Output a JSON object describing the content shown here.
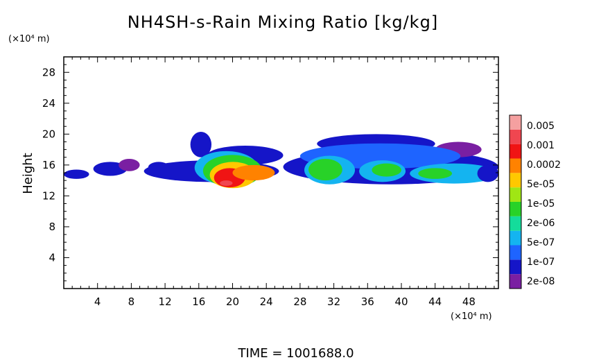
{
  "chart_data": {
    "type": "heatmap",
    "title": "NH4SH-s-Rain Mixing Ratio [kg/kg]",
    "ylabel": "Height",
    "y_unit": "(×10⁴ m)",
    "x_unit": "(×10⁴ m)",
    "xlim": [
      0,
      51.5
    ],
    "ylim": [
      0,
      30
    ],
    "x_ticks": [
      4,
      8,
      12,
      16,
      20,
      24,
      28,
      32,
      36,
      40,
      44,
      48
    ],
    "y_ticks": [
      4,
      8,
      12,
      16,
      20,
      24,
      28
    ],
    "footer": "TIME = 1001688.0",
    "colorbar": {
      "levels": [
        "2e-08",
        "1e-07",
        "5e-07",
        "2e-06",
        "1e-05",
        "5e-05",
        "0.0002",
        "0.001",
        "0.005"
      ],
      "colors": [
        "#7a1fa2",
        "#1515c8",
        "#1e64ff",
        "#14b4f0",
        "#14dc9b",
        "#28d228",
        "#a0e614",
        "#ffc800",
        "#ff8200",
        "#f01414",
        "#f04650",
        "#f5a0a0"
      ]
    },
    "regions": [
      {
        "level": 1,
        "x0": 0.0,
        "x1": 3.0,
        "y0": 14.2,
        "y1": 15.4
      },
      {
        "level": 1,
        "x0": 3.5,
        "x1": 7.5,
        "y0": 14.6,
        "y1": 16.4
      },
      {
        "level": 0,
        "x0": 6.5,
        "x1": 9.0,
        "y0": 15.2,
        "y1": 16.8
      },
      {
        "level": 1,
        "x0": 10.0,
        "x1": 12.5,
        "y0": 15.0,
        "y1": 16.4
      },
      {
        "level": 1,
        "x0": 9.5,
        "x1": 25.5,
        "y0": 13.8,
        "y1": 16.6
      },
      {
        "level": 1,
        "x0": 15.0,
        "x1": 17.5,
        "y0": 17.0,
        "y1": 20.3
      },
      {
        "level": 1,
        "x0": 17.0,
        "x1": 26.0,
        "y0": 16.0,
        "y1": 18.5
      },
      {
        "level": 3,
        "x0": 15.5,
        "x1": 23.0,
        "y0": 13.5,
        "y1": 17.8
      },
      {
        "level": 5,
        "x0": 16.5,
        "x1": 23.5,
        "y0": 13.2,
        "y1": 17.3
      },
      {
        "level": 7,
        "x0": 17.3,
        "x1": 22.8,
        "y0": 13.0,
        "y1": 16.4
      },
      {
        "level": 9,
        "x0": 17.8,
        "x1": 21.5,
        "y0": 13.1,
        "y1": 15.6
      },
      {
        "level": 8,
        "x0": 20.0,
        "x1": 25.0,
        "y0": 14.0,
        "y1": 16.0
      },
      {
        "level": 10,
        "x0": 18.5,
        "x1": 20.0,
        "y0": 13.3,
        "y1": 14.0
      },
      {
        "level": 1,
        "x0": 26.0,
        "x1": 51.5,
        "y0": 13.5,
        "y1": 18.0
      },
      {
        "level": 1,
        "x0": 30.0,
        "x1": 44.0,
        "y0": 17.5,
        "y1": 20.0
      },
      {
        "level": 0,
        "x0": 44.0,
        "x1": 49.5,
        "y0": 17.0,
        "y1": 19.0
      },
      {
        "level": 2,
        "x0": 28.0,
        "x1": 47.0,
        "y0": 15.5,
        "y1": 18.8
      },
      {
        "level": 3,
        "x0": 28.5,
        "x1": 34.5,
        "y0": 13.5,
        "y1": 17.2
      },
      {
        "level": 5,
        "x0": 29.0,
        "x1": 33.0,
        "y0": 14.0,
        "y1": 16.8
      },
      {
        "level": 3,
        "x0": 35.0,
        "x1": 40.5,
        "y0": 13.8,
        "y1": 16.6
      },
      {
        "level": 5,
        "x0": 36.5,
        "x1": 40.0,
        "y0": 14.5,
        "y1": 16.2
      },
      {
        "level": 3,
        "x0": 41.0,
        "x1": 51.5,
        "y0": 13.6,
        "y1": 16.2
      },
      {
        "level": 5,
        "x0": 42.0,
        "x1": 46.0,
        "y0": 14.2,
        "y1": 15.6
      },
      {
        "level": 1,
        "x0": 49.0,
        "x1": 51.5,
        "y0": 13.8,
        "y1": 16.0
      }
    ]
  }
}
